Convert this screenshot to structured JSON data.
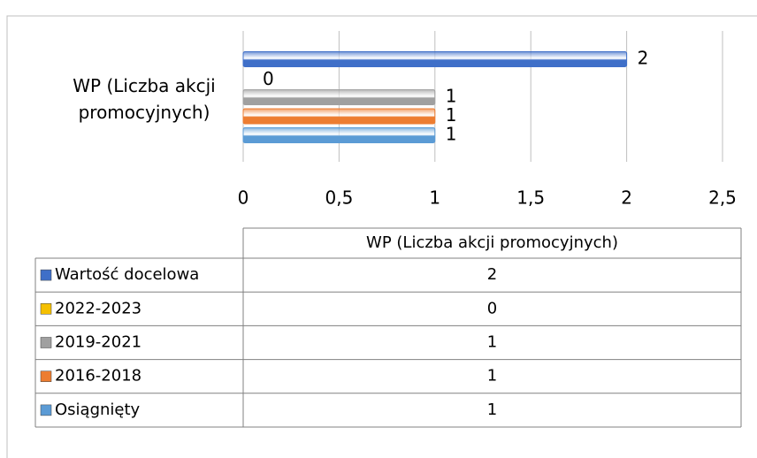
{
  "chart_data": {
    "type": "bar",
    "orientation": "horizontal",
    "categories": [
      "WP (Liczba akcji promocyjnych)"
    ],
    "series": [
      {
        "name": "Wartość docelowa",
        "color": "#3f6fc8",
        "values": [
          2
        ]
      },
      {
        "name": "2022-2023",
        "color": "#f5c000",
        "values": [
          0
        ]
      },
      {
        "name": "2019-2021",
        "color": "#a0a0a0",
        "values": [
          1
        ]
      },
      {
        "name": "2016-2018",
        "color": "#ed7d31",
        "values": [
          1
        ]
      },
      {
        "name": "Osiągnięty",
        "color": "#5b9bd5",
        "values": [
          1
        ]
      }
    ],
    "xlim": [
      0,
      2.5
    ],
    "xticks": [
      0,
      {
        "value": 0.5,
        "label": "0,5"
      },
      1,
      {
        "value": 1.5,
        "label": "1,5"
      },
      2,
      {
        "value": 2.5,
        "label": "2,5"
      }
    ],
    "grid": true,
    "data_table": true
  }
}
